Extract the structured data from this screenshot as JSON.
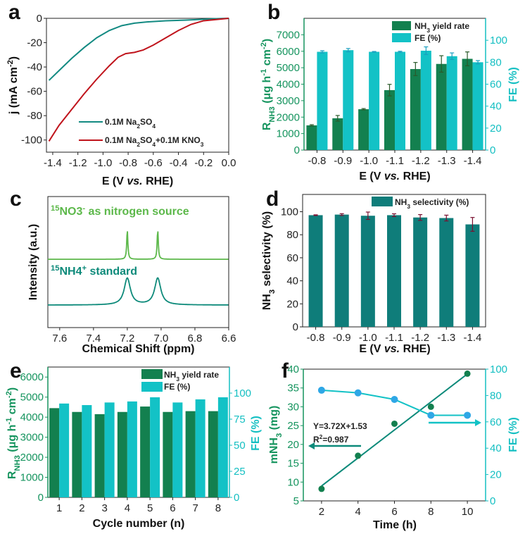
{
  "colors": {
    "teal": "#138a82",
    "red": "#c0141c",
    "dark_green": "#13804f",
    "cyan": "#13c2c6",
    "light_green": "#5cb84a",
    "nmr_teal": "#0d8a7a",
    "selectivity": "#0f7d7a",
    "fe_dot": "#2ea7e6",
    "green_axis": "#15945e",
    "cyan_axis": "#14bfc2",
    "error_dark": "#5a3a2a",
    "error_red": "#7a1030"
  },
  "panels": {
    "a": {
      "letter": "a"
    },
    "b": {
      "letter": "b"
    },
    "c": {
      "letter": "c"
    },
    "d": {
      "letter": "d"
    },
    "e": {
      "letter": "e"
    },
    "f": {
      "letter": "f"
    }
  },
  "chart_data": [
    {
      "id": "a",
      "type": "line",
      "xlabel": "E (V vs. RHE)",
      "ylabel": "j (mA cm-2)",
      "xlim": [
        -1.45,
        0.0
      ],
      "ylim": [
        -110,
        0
      ],
      "xticks": [
        "-1.4",
        "-1.2",
        "-1.0",
        "-0.8",
        "-0.6",
        "-0.4",
        "-0.2",
        "0.0"
      ],
      "xtick_values": [
        -1.4,
        -1.2,
        -1.0,
        -0.8,
        -0.6,
        -0.4,
        -0.2,
        0.0
      ],
      "yticks": [
        "0",
        "-20",
        "-40",
        "-60",
        "-80",
        "-100"
      ],
      "ytick_values": [
        0,
        -20,
        -40,
        -60,
        -80,
        -100
      ],
      "legend_position": "bottom-right",
      "series": [
        {
          "name": "0.1M Na2SO4",
          "color_key": "teal",
          "x": [
            -1.43,
            -1.35,
            -1.25,
            -1.15,
            -1.05,
            -0.95,
            -0.85,
            -0.75,
            -0.65,
            -0.5,
            -0.35,
            -0.2,
            -0.1,
            0.0
          ],
          "y": [
            -51,
            -43,
            -33,
            -24,
            -16,
            -10,
            -6,
            -4,
            -3,
            -2,
            -1.5,
            -0.8,
            -0.3,
            0
          ]
        },
        {
          "name": "0.1M Na2SO4+0.1M KNO3",
          "color_key": "red",
          "x": [
            -1.43,
            -1.35,
            -1.25,
            -1.15,
            -1.05,
            -0.95,
            -0.88,
            -0.82,
            -0.75,
            -0.68,
            -0.6,
            -0.5,
            -0.4,
            -0.3,
            -0.2,
            -0.1,
            0.0
          ],
          "y": [
            -101,
            -88,
            -75,
            -62,
            -50,
            -39,
            -32,
            -29,
            -28,
            -26,
            -22,
            -16,
            -10,
            -5,
            -2,
            -1,
            0
          ]
        }
      ]
    },
    {
      "id": "b",
      "type": "bar",
      "xlabel": "E (V vs. RHE)",
      "ylabel": "RNH3 (μg h-1 cm-2)",
      "ylabel_right": "FE (%)",
      "categories": [
        "-0.8",
        "-0.9",
        "-1.0",
        "-1.1",
        "-1.2",
        "-1.3",
        "-1.4"
      ],
      "ylim": [
        0,
        8000
      ],
      "ylim_right": [
        0,
        120
      ],
      "yticks": [
        0,
        1000,
        2000,
        3000,
        4000,
        5000,
        6000,
        7000
      ],
      "yticks_right": [
        0,
        20,
        40,
        60,
        80,
        100
      ],
      "legend_position": "top-right",
      "series": [
        {
          "name": "NH3 yield rate",
          "axis": "left",
          "color_key": "dark_green",
          "values": [
            1500,
            1930,
            2480,
            3640,
            4920,
            5230,
            5540
          ],
          "errors": [
            40,
            170,
            40,
            350,
            400,
            500,
            420
          ]
        },
        {
          "name": "FE (%)",
          "axis": "right",
          "color_key": "cyan",
          "values": [
            89.5,
            91,
            89.5,
            89.5,
            90.5,
            85.5,
            80
          ],
          "errors": [
            1,
            1.5,
            0.3,
            0.5,
            3.5,
            3,
            1.5
          ]
        }
      ]
    },
    {
      "id": "c",
      "type": "line",
      "xlabel": "Chemical Shift (ppm)",
      "ylabel": "Intensity (a.u.)",
      "xlim": [
        7.67,
        6.6
      ],
      "xticks": [
        "7.6",
        "7.4",
        "7.2",
        "7.0",
        "6.8",
        "6.6"
      ],
      "xtick_values": [
        7.6,
        7.4,
        7.2,
        7.0,
        6.8,
        6.6
      ],
      "series": [
        {
          "name": "15NO3- as nitrogen source",
          "color_key": "light_green",
          "peaks": [
            7.2,
            7.02
          ],
          "peak_width": "sharp"
        },
        {
          "name": "15NH4+ standard",
          "color_key": "nmr_teal",
          "peaks": [
            7.2,
            7.02
          ],
          "peak_width": "broad"
        }
      ],
      "annotations": [
        {
          "sup": "15",
          "main": "NO3",
          "sup2": "-",
          "rest": " as nitrogen source"
        },
        {
          "sup": "15",
          "main": "NH4",
          "sup2": "+",
          "rest": " standard"
        }
      ]
    },
    {
      "id": "d",
      "type": "bar",
      "xlabel": "E (V vs. RHE)",
      "ylabel": "NH3 selectivity (%)",
      "categories": [
        "-0.8",
        "-0.9",
        "-1.0",
        "-1.1",
        "-1.2",
        "-1.3",
        "-1.4"
      ],
      "ylim": [
        0,
        115
      ],
      "yticks": [
        0,
        20,
        40,
        60,
        80,
        100
      ],
      "legend_position": "top-right",
      "series": [
        {
          "name": "NH3 selectivity (%)",
          "color_key": "selectivity",
          "values": [
            97,
            97.5,
            96.5,
            97,
            95,
            94.5,
            89
          ],
          "errors": [
            0.3,
            0.8,
            3.2,
            1.2,
            2.5,
            2.5,
            6
          ]
        }
      ]
    },
    {
      "id": "e",
      "type": "bar",
      "xlabel": "Cycle number (n)",
      "ylabel": "RNH3 (μg h-1 cm-2)",
      "ylabel_right": "FE (%)",
      "categories": [
        "1",
        "2",
        "3",
        "4",
        "5",
        "6",
        "7",
        "8"
      ],
      "ylim": [
        0,
        6500
      ],
      "ylim_right": [
        0,
        125
      ],
      "yticks": [
        0,
        1000,
        2000,
        3000,
        4000,
        5000,
        6000
      ],
      "yticks_right": [
        0,
        25,
        50,
        75,
        100
      ],
      "legend_position": "top-right",
      "series": [
        {
          "name": "NH3 yield rate",
          "axis": "left",
          "color_key": "dark_green",
          "values": [
            4450,
            4260,
            4150,
            4260,
            4530,
            4260,
            4300,
            4300
          ]
        },
        {
          "name": "FE (%)",
          "axis": "right",
          "color_key": "cyan",
          "values": [
            90,
            88.5,
            91,
            92,
            96,
            91,
            94,
            96
          ]
        }
      ]
    },
    {
      "id": "f",
      "type": "scatter",
      "xlabel": "Time (h)",
      "ylabel": "mNH3 (mg)",
      "ylabel_right": "FE (%)",
      "xlim": [
        1,
        11
      ],
      "ylim": [
        5,
        40
      ],
      "ylim_right": [
        0,
        100
      ],
      "xticks": [
        2,
        4,
        6,
        8,
        10
      ],
      "yticks": [
        5,
        10,
        15,
        20,
        25,
        30,
        35,
        40
      ],
      "yticks_right": [
        0,
        20,
        40,
        60,
        80,
        100
      ],
      "series": [
        {
          "name": "mNH3",
          "axis": "left",
          "color_key": "dark_green",
          "x": [
            2,
            4,
            6,
            8,
            10
          ],
          "y": [
            8.2,
            17,
            25.5,
            30,
            38.8
          ]
        },
        {
          "name": "FE",
          "axis": "right",
          "color_key": "fe_dot",
          "x": [
            2,
            4,
            6,
            8,
            10
          ],
          "y": [
            84,
            82,
            77,
            65,
            65
          ]
        }
      ],
      "fit": {
        "slope": 3.72,
        "intercept": 1.53,
        "x_range": [
          2,
          10
        ]
      },
      "annotations": [
        "Y=3.72X+1.53",
        "R2=0.987"
      ]
    }
  ]
}
